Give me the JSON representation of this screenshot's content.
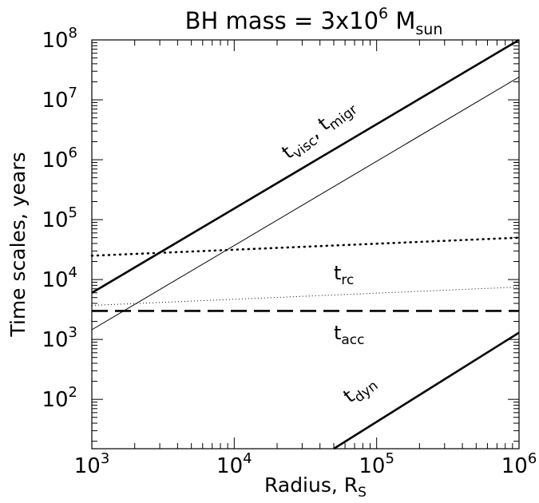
{
  "chart_data": {
    "type": "line",
    "title": {
      "main": "BH mass  =  3x10",
      "exp": "6",
      "unit": " M",
      "unit_sub": "sun"
    },
    "xlabel": {
      "main": "Radius, R",
      "sub": "S"
    },
    "ylabel": "Time scales, years",
    "xscale": "log",
    "yscale": "log",
    "xlim": [
      1000,
      1000000
    ],
    "ylim": [
      15,
      100000000
    ],
    "x_ticks": [
      {
        "base": "10",
        "exp": "3",
        "value": 1000
      },
      {
        "base": "10",
        "exp": "4",
        "value": 10000
      },
      {
        "base": "10",
        "exp": "5",
        "value": 100000
      },
      {
        "base": "10",
        "exp": "6",
        "value": 1000000
      }
    ],
    "y_ticks": [
      {
        "base": "10",
        "exp": "2",
        "value": 100
      },
      {
        "base": "10",
        "exp": "3",
        "value": 1000
      },
      {
        "base": "10",
        "exp": "4",
        "value": 10000
      },
      {
        "base": "10",
        "exp": "5",
        "value": 100000
      },
      {
        "base": "10",
        "exp": "6",
        "value": 1000000
      },
      {
        "base": "10",
        "exp": "7",
        "value": 10000000
      },
      {
        "base": "10",
        "exp": "8",
        "value": 100000000
      }
    ],
    "grid": false,
    "series": [
      {
        "style": "thick-solid",
        "x": [
          1000,
          1000000
        ],
        "y": [
          6000,
          100000000
        ]
      },
      {
        "style": "thin-solid",
        "x": [
          1000,
          1000000
        ],
        "y": [
          1450,
          24000000
        ]
      },
      {
        "style": "thick-dotted",
        "x": [
          1000,
          1000000
        ],
        "y": [
          25000,
          50000
        ]
      },
      {
        "style": "thin-dotted",
        "x": [
          1000,
          1000000
        ],
        "y": [
          3700,
          7500
        ]
      },
      {
        "style": "thick-dashed",
        "x": [
          1000,
          1000000
        ],
        "y": [
          3000,
          3000
        ]
      },
      {
        "style": "thick-solid",
        "x": [
          50000,
          1000000
        ],
        "y": [
          15,
          1300
        ]
      }
    ],
    "annotations": [
      {
        "text": "t",
        "sub": "visc",
        "text2": ", t",
        "sub2": "migr",
        "x": 24000,
        "y": 1000000,
        "rotate": -38
      },
      {
        "text": "t",
        "sub": "rc",
        "x": 50000,
        "y": 10000,
        "rotate": 0
      },
      {
        "text": "t",
        "sub": "acc",
        "x": 50000,
        "y": 1000,
        "rotate": 0
      },
      {
        "text": "t",
        "sub": "dyn",
        "x": 65000,
        "y": 85,
        "rotate": -38
      }
    ]
  }
}
